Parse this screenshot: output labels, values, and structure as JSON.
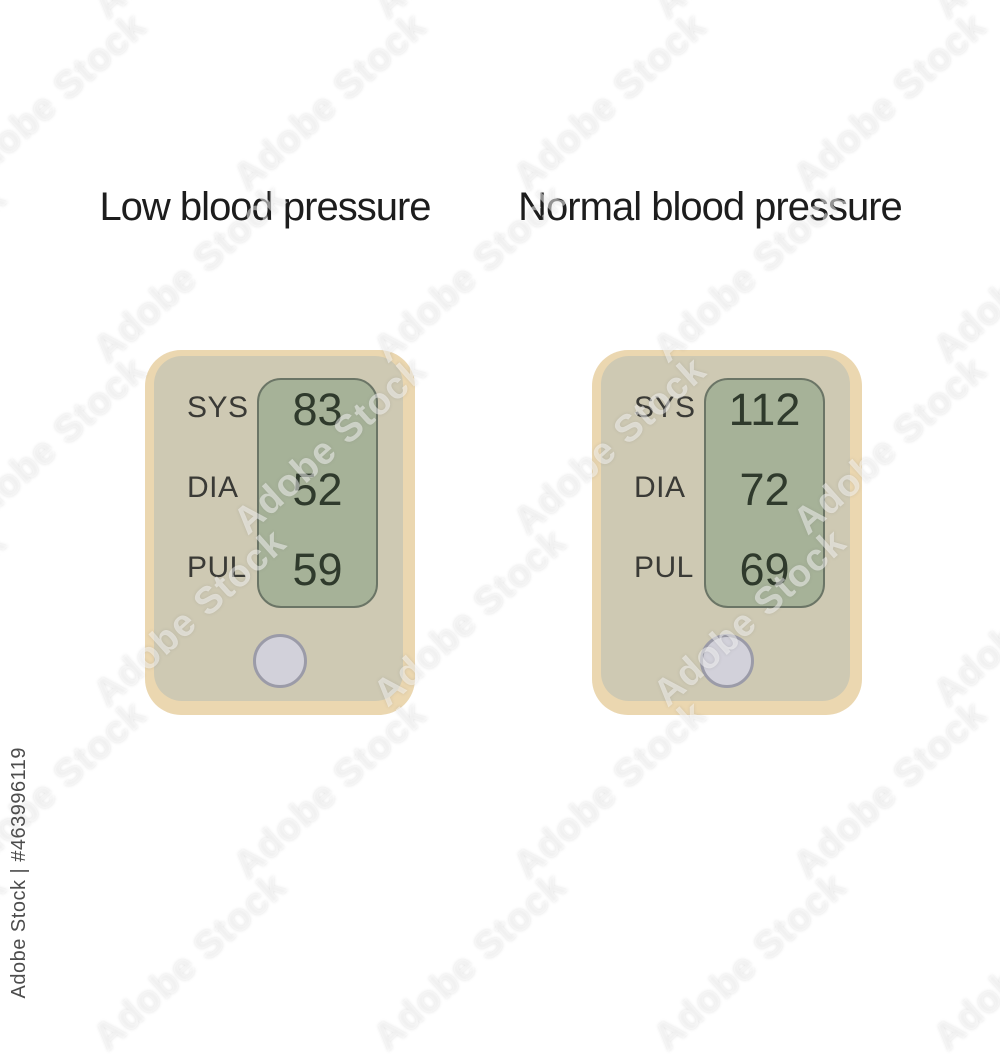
{
  "watermark": {
    "tile_text": "Adobe Stock",
    "credit_text": "Adobe Stock | #463996119"
  },
  "monitors": [
    {
      "title": "Low blood pressure",
      "rows": [
        {
          "label": "SYS",
          "value": "83"
        },
        {
          "label": "DIA",
          "value": "52"
        },
        {
          "label": "PUL",
          "value": "59"
        }
      ]
    },
    {
      "title": "Normal blood pressure",
      "rows": [
        {
          "label": "SYS",
          "value": "112"
        },
        {
          "label": "DIA",
          "value": "72"
        },
        {
          "label": "PUL",
          "value": "69"
        }
      ]
    }
  ],
  "colors": {
    "frame": "#ebd7b0",
    "body": "#cec9b3",
    "screen": "#a6b298",
    "screen_border": "#6b7566",
    "digits": "#2f3a2c",
    "labels": "#3a3a36",
    "button_fill": "#d2d1da",
    "button_ring": "#9b9ba8",
    "title": "#1d1d1d",
    "credit": "#4d4d4d"
  }
}
